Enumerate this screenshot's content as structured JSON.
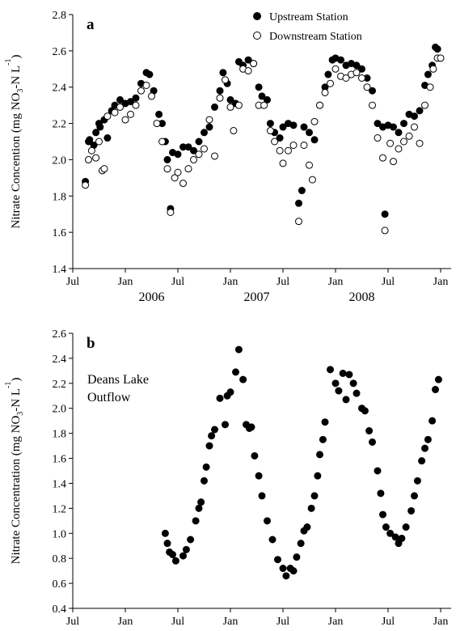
{
  "chart_data": [
    {
      "type": "scatter",
      "panel_label": "a",
      "ylabel": [
        "Nitrate Concention (mg NO",
        "3",
        "-N L",
        "-1",
        ")"
      ],
      "xlim": [
        2005.5,
        2009.1
      ],
      "xticks": [
        {
          "value": 2005.5,
          "label": "Jul"
        },
        {
          "value": 2006,
          "label": "Jan"
        },
        {
          "value": 2006.5,
          "label": "Jul"
        },
        {
          "value": 2007,
          "label": "Jan"
        },
        {
          "value": 2007.5,
          "label": "Jul"
        },
        {
          "value": 2008,
          "label": "Jan"
        },
        {
          "value": 2008.5,
          "label": "Jul"
        },
        {
          "value": 2009,
          "label": "Jan"
        }
      ],
      "years": [
        "2006",
        "2007",
        "2008"
      ],
      "ylim": [
        1.4,
        2.8
      ],
      "yticks": [
        1.4,
        1.6,
        1.8,
        {
          "value": 2,
          "label": "2.0"
        },
        2.2,
        2.4,
        2.6,
        2.8
      ],
      "legend": "upper-right",
      "series": [
        {
          "name": "Upstream Station",
          "color": "#000000",
          "marker": "filled",
          "x": [
            2005.62,
            2005.65,
            2005.66,
            2005.7,
            2005.72,
            2005.75,
            2005.76,
            2005.8,
            2005.83,
            2005.87,
            2005.9,
            2005.95,
            2006.0,
            2006.05,
            2006.1,
            2006.15,
            2006.2,
            2006.23,
            2006.27,
            2006.32,
            2006.35,
            2006.38,
            2006.4,
            2006.43,
            2006.45,
            2006.5,
            2006.55,
            2006.6,
            2006.65,
            2006.7,
            2006.75,
            2006.8,
            2006.85,
            2006.9,
            2006.93,
            2006.97,
            2007.0,
            2007.05,
            2007.08,
            2007.12,
            2007.17,
            2007.22,
            2007.27,
            2007.3,
            2007.35,
            2007.38,
            2007.42,
            2007.47,
            2007.5,
            2007.55,
            2007.6,
            2007.65,
            2007.68,
            2007.7,
            2007.75,
            2007.8,
            2007.85,
            2007.9,
            2007.93,
            2007.97,
            2008.0,
            2008.05,
            2008.1,
            2008.15,
            2008.2,
            2008.25,
            2008.3,
            2008.35,
            2008.4,
            2008.45,
            2008.47,
            2008.5,
            2008.55,
            2008.6,
            2008.65,
            2008.7,
            2008.75,
            2008.8,
            2008.85,
            2008.88,
            2008.92,
            2008.95,
            2008.97
          ],
          "values": [
            1.88,
            2.1,
            2.11,
            2.08,
            2.15,
            2.2,
            2.18,
            2.22,
            2.12,
            2.27,
            2.3,
            2.33,
            2.31,
            2.32,
            2.34,
            2.42,
            2.48,
            2.47,
            2.38,
            2.25,
            2.2,
            2.1,
            2.0,
            1.73,
            2.04,
            2.03,
            2.07,
            2.07,
            2.05,
            2.1,
            2.15,
            2.18,
            2.29,
            2.38,
            2.48,
            2.42,
            2.33,
            2.31,
            2.54,
            2.52,
            2.55,
            2.53,
            2.4,
            2.35,
            2.33,
            2.2,
            2.15,
            2.12,
            2.18,
            2.2,
            2.19,
            1.76,
            1.83,
            2.18,
            2.15,
            2.11,
            2.3,
            2.4,
            2.47,
            2.55,
            2.56,
            2.55,
            2.52,
            2.53,
            2.52,
            2.5,
            2.45,
            2.38,
            2.2,
            2.18,
            1.7,
            2.19,
            2.18,
            2.15,
            2.2,
            2.25,
            2.24,
            2.27,
            2.41,
            2.47,
            2.52,
            2.62,
            2.61
          ]
        },
        {
          "name": "Downstream Station",
          "color": "#000000",
          "marker": "open",
          "x": [
            2005.62,
            2005.65,
            2005.68,
            2005.72,
            2005.75,
            2005.78,
            2005.8,
            2005.83,
            2005.9,
            2005.95,
            2006.0,
            2006.05,
            2006.1,
            2006.15,
            2006.2,
            2006.25,
            2006.3,
            2006.35,
            2006.4,
            2006.43,
            2006.47,
            2006.5,
            2006.55,
            2006.6,
            2006.65,
            2006.7,
            2006.75,
            2006.8,
            2006.85,
            2006.9,
            2006.95,
            2007.0,
            2007.03,
            2007.08,
            2007.12,
            2007.17,
            2007.22,
            2007.27,
            2007.32,
            2007.38,
            2007.42,
            2007.47,
            2007.5,
            2007.55,
            2007.6,
            2007.65,
            2007.7,
            2007.75,
            2007.78,
            2007.8,
            2007.85,
            2007.9,
            2007.95,
            2008.0,
            2008.05,
            2008.1,
            2008.15,
            2008.2,
            2008.25,
            2008.3,
            2008.35,
            2008.4,
            2008.45,
            2008.47,
            2008.52,
            2008.55,
            2008.6,
            2008.65,
            2008.7,
            2008.75,
            2008.8,
            2008.85,
            2008.9,
            2008.93,
            2008.97,
            2009.0
          ],
          "values": [
            1.86,
            2.0,
            2.05,
            2.01,
            2.1,
            1.94,
            1.95,
            2.24,
            2.26,
            2.29,
            2.22,
            2.25,
            2.3,
            2.38,
            2.41,
            2.35,
            2.2,
            2.1,
            1.95,
            1.71,
            1.9,
            1.93,
            1.87,
            1.95,
            2.0,
            2.03,
            2.06,
            2.22,
            2.02,
            2.34,
            2.44,
            2.29,
            2.16,
            2.3,
            2.5,
            2.49,
            2.53,
            2.3,
            2.3,
            2.16,
            2.1,
            2.05,
            1.98,
            2.05,
            2.08,
            1.66,
            2.08,
            1.97,
            1.89,
            2.21,
            2.3,
            2.37,
            2.42,
            2.5,
            2.46,
            2.45,
            2.47,
            2.48,
            2.45,
            2.4,
            2.3,
            2.12,
            2.01,
            1.61,
            2.09,
            1.99,
            2.06,
            2.1,
            2.13,
            2.18,
            2.09,
            2.3,
            2.4,
            2.5,
            2.56,
            2.56
          ]
        }
      ]
    },
    {
      "type": "scatter",
      "panel_label": "b",
      "ylabel": [
        "Nitrate Concentration (mg NO",
        "3",
        "-N L",
        "-1",
        ")"
      ],
      "annotation": [
        "Deans Lake",
        "Outflow"
      ],
      "xlim": [
        2005.5,
        2009.1
      ],
      "xticks": [
        {
          "value": 2005.5,
          "label": "Jul"
        },
        {
          "value": 2006,
          "label": "Jan"
        },
        {
          "value": 2006.5,
          "label": "Jul"
        },
        {
          "value": 2007,
          "label": "Jan"
        },
        {
          "value": 2007.5,
          "label": "Jul"
        },
        {
          "value": 2008,
          "label": "Jan"
        },
        {
          "value": 2008.5,
          "label": "Jul"
        },
        {
          "value": 2009,
          "label": "Jan"
        }
      ],
      "years": [
        "2006",
        "2007",
        "2008"
      ],
      "ylim": [
        0.4,
        2.6
      ],
      "yticks": [
        0.4,
        0.6,
        0.8,
        {
          "value": 1,
          "label": "1.0"
        },
        1.2,
        1.4,
        1.6,
        1.8,
        {
          "value": 2,
          "label": "2.0"
        },
        2.2,
        2.4,
        2.6
      ],
      "series": [
        {
          "color": "#000000",
          "marker": "filled",
          "x": [
            2006.38,
            2006.4,
            2006.42,
            2006.45,
            2006.48,
            2006.55,
            2006.58,
            2006.62,
            2006.67,
            2006.7,
            2006.72,
            2006.75,
            2006.77,
            2006.8,
            2006.82,
            2006.85,
            2006.9,
            2006.95,
            2006.97,
            2007.0,
            2007.05,
            2007.08,
            2007.12,
            2007.15,
            2007.18,
            2007.2,
            2007.23,
            2007.27,
            2007.3,
            2007.35,
            2007.4,
            2007.45,
            2007.5,
            2007.53,
            2007.57,
            2007.6,
            2007.63,
            2007.67,
            2007.7,
            2007.73,
            2007.77,
            2007.8,
            2007.83,
            2007.85,
            2007.88,
            2007.9,
            2007.95,
            2008.0,
            2008.03,
            2008.07,
            2008.1,
            2008.13,
            2008.17,
            2008.2,
            2008.25,
            2008.28,
            2008.32,
            2008.35,
            2008.4,
            2008.43,
            2008.45,
            2008.48,
            2008.52,
            2008.57,
            2008.6,
            2008.63,
            2008.67,
            2008.72,
            2008.75,
            2008.78,
            2008.82,
            2008.85,
            2008.88,
            2008.92,
            2008.95,
            2008.98
          ],
          "values": [
            1.0,
            0.92,
            0.85,
            0.83,
            0.78,
            0.82,
            0.87,
            0.95,
            1.1,
            1.2,
            1.25,
            1.42,
            1.53,
            1.7,
            1.78,
            1.83,
            2.08,
            1.87,
            2.1,
            2.13,
            2.29,
            2.47,
            2.23,
            1.87,
            1.84,
            1.85,
            1.62,
            1.46,
            1.3,
            1.1,
            0.95,
            0.79,
            0.72,
            0.66,
            0.72,
            0.7,
            0.81,
            0.92,
            1.02,
            1.05,
            1.2,
            1.3,
            1.46,
            1.63,
            1.75,
            1.89,
            2.31,
            2.2,
            2.14,
            2.28,
            2.07,
            2.27,
            2.2,
            2.12,
            2.0,
            1.98,
            1.82,
            1.73,
            1.5,
            1.32,
            1.15,
            1.05,
            1.0,
            0.97,
            0.92,
            0.96,
            1.05,
            1.18,
            1.3,
            1.42,
            1.58,
            1.68,
            1.75,
            1.9,
            2.15,
            2.23
          ]
        }
      ]
    }
  ]
}
